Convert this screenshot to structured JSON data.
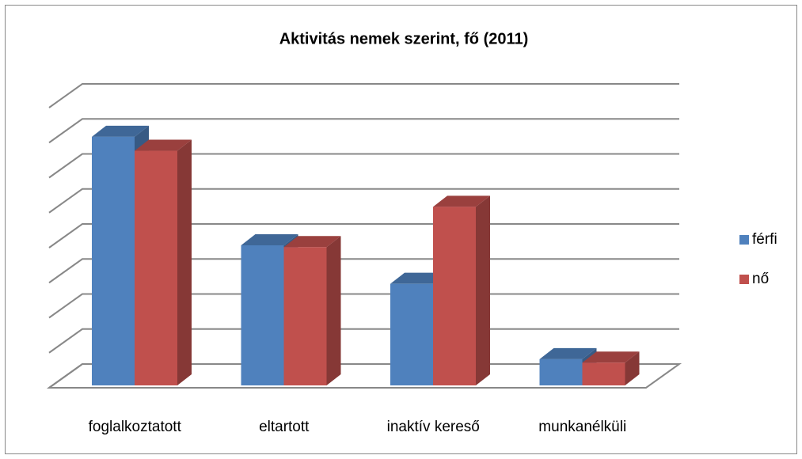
{
  "chart_data": {
    "type": "bar3d",
    "title": "Aktivitás nemek szerint, fő (2011)",
    "categories": [
      "foglalkoztatott",
      "eltartott",
      "inaktív kereső",
      "munkanélküli"
    ],
    "series": [
      {
        "name": "férfi",
        "color": "#4f81bd",
        "values": [
          7.1,
          4.0,
          2.9,
          0.75
        ]
      },
      {
        "name": "nő",
        "color": "#c0504d",
        "values": [
          6.7,
          3.95,
          5.1,
          0.65
        ]
      }
    ],
    "ylim": [
      0,
      8
    ],
    "yticks": [
      0,
      1,
      2,
      3,
      4,
      5,
      6,
      7,
      8
    ],
    "grid": true,
    "legend": "right"
  }
}
